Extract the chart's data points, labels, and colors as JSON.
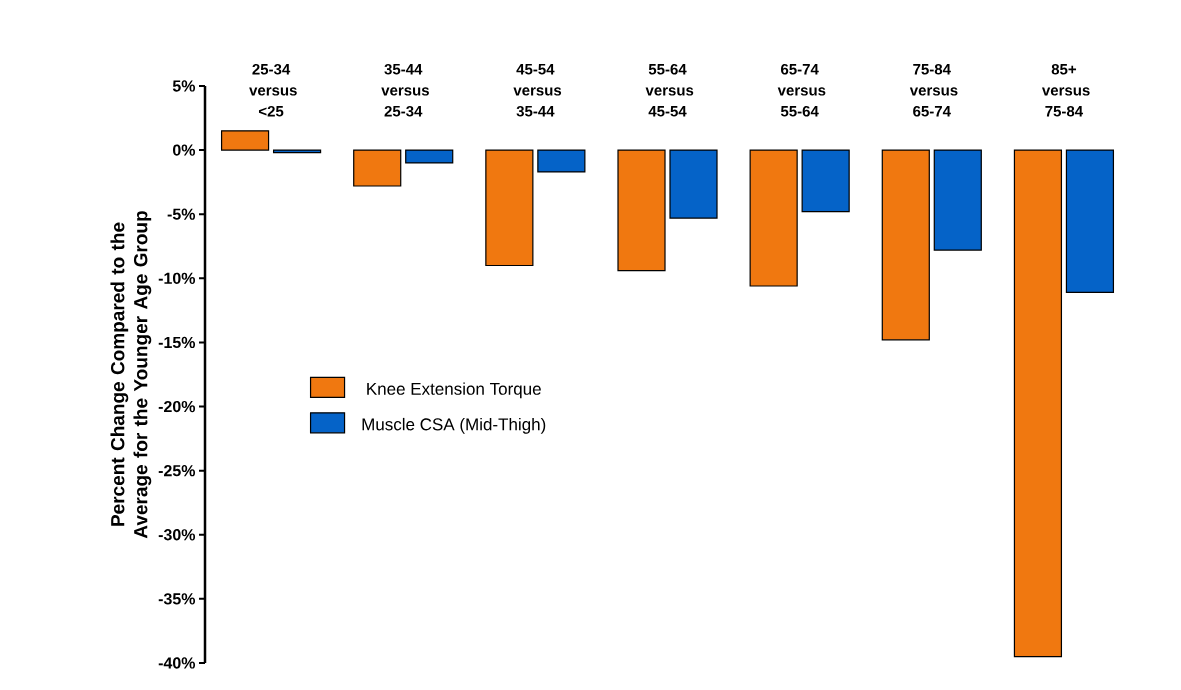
{
  "chart_data": {
    "type": "bar",
    "ylabel": "Percent Change Compared to the Average for the Younger Age Group",
    "categories": [
      "25-34 versus <25",
      "35-44 versus 25-34",
      "45-54 versus 35-44",
      "55-64 versus 45-54",
      "65-74 versus 55-64",
      "75-84 versus 65-74",
      "85+ versus 75-84"
    ],
    "series": [
      {
        "name": "Knee Extension Torque",
        "color": "#f07810",
        "values": [
          1.5,
          -2.8,
          -9.0,
          -9.4,
          -10.6,
          -14.8,
          -39.5
        ]
      },
      {
        "name": "Muscle CSA (Mid-Thigh)",
        "color": "#0563c8",
        "values": [
          -0.2,
          -1.0,
          -1.7,
          -5.3,
          -4.8,
          -7.8,
          -11.1
        ]
      }
    ],
    "ylim": [
      -40,
      5
    ],
    "yticks": [
      {
        "value": -40,
        "label": "-40%"
      },
      {
        "value": -35,
        "label": "-35%"
      },
      {
        "value": -30,
        "label": "-30%"
      },
      {
        "value": -25,
        "label": "-25%"
      },
      {
        "value": -20,
        "label": "-20%"
      },
      {
        "value": -15,
        "label": "-15%"
      },
      {
        "value": -10,
        "label": "-10%"
      },
      {
        "value": -5,
        "label": "-5%"
      },
      {
        "value": 0,
        "label": "0%"
      },
      {
        "value": 5,
        "label": "5%"
      }
    ],
    "legend": "left",
    "grid": false
  }
}
